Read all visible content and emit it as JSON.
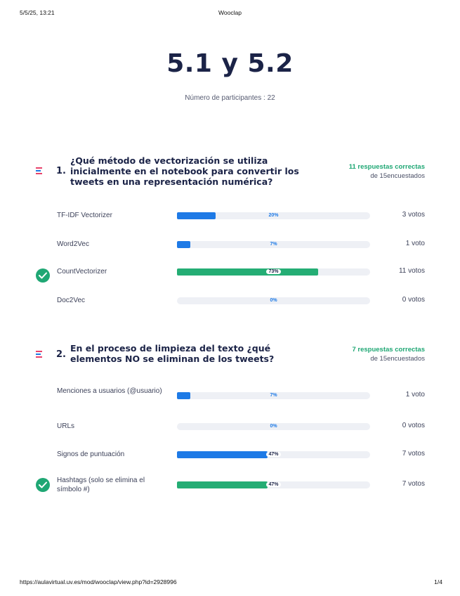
{
  "print_header": {
    "date": "5/5/25, 13:21",
    "title": "Wooclap"
  },
  "main": {
    "title": "5.1 y 5.2",
    "participants": "Número de participantes : 22"
  },
  "questions": [
    {
      "number": "1.",
      "text": "¿Qué método de vectorización se utiliza inicialmente en el notebook para convertir los tweets en una representación numérica?",
      "correct": "11 respuestas correctas",
      "total": "de 15encuestados",
      "options": [
        {
          "label": "TF-IDF Vectorizer",
          "percent": 20,
          "percent_label": "20%",
          "votes": "3 votos",
          "correct": false
        },
        {
          "label": "Word2Vec",
          "percent": 7,
          "percent_label": "7%",
          "votes": "1 voto",
          "correct": false
        },
        {
          "label": "CountVectorizer",
          "percent": 73,
          "percent_label": "73%",
          "votes": "11 votos",
          "correct": true
        },
        {
          "label": "Doc2Vec",
          "percent": 0,
          "percent_label": "0%",
          "votes": "0 votos",
          "correct": false
        }
      ]
    },
    {
      "number": "2.",
      "text": "En el proceso de limpieza del texto ¿qué elementos NO se eliminan de los tweets?",
      "correct": "7 respuestas correctas",
      "total": "de 15encuestados",
      "options": [
        {
          "label": "Menciones a usuarios (@usuario)",
          "percent": 7,
          "percent_label": "7%",
          "votes": "1 voto",
          "correct": false
        },
        {
          "label": "URLs",
          "percent": 0,
          "percent_label": "0%",
          "votes": "0 votos",
          "correct": false
        },
        {
          "label": "Signos de puntuación",
          "percent": 47,
          "percent_label": "47%",
          "votes": "7 votos",
          "correct": false
        },
        {
          "label": "Hashtags (solo se elimina el símbolo #)",
          "percent": 47,
          "percent_label": "47%",
          "votes": "7 votos",
          "correct": true
        }
      ]
    }
  ],
  "print_footer": {
    "url": "https://aulavirtual.uv.es/mod/wooclap/view.php?id=2928996",
    "page": "1/4"
  },
  "colors": {
    "correct_green": "#24ad74",
    "bar_blue": "#1e7ae6",
    "title_navy": "#1b2347"
  },
  "icons": {
    "question": "multiple-choice-icon",
    "correct": "check-circle-icon"
  }
}
